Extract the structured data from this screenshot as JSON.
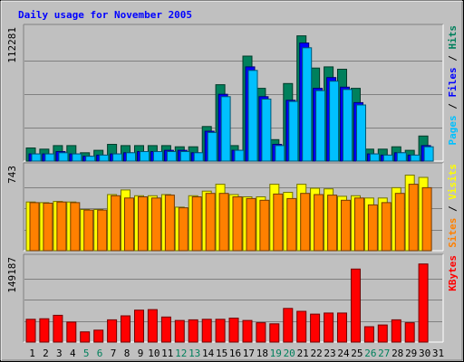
{
  "title": "Daily usage for November 2005",
  "colors": {
    "background": "#C0C0C0",
    "plot": "#C0C0C0",
    "grid": "#808080",
    "title": "#0000FF",
    "hits": "#00805C",
    "files": "#0000FF",
    "pages": "#00C0FF",
    "visits": "#FFFF00",
    "sites": "#FF8000",
    "kbytes": "#FF0000",
    "weekend": "#00805C",
    "weekday": "#000000"
  },
  "chart_data": [
    {
      "type": "bar",
      "name": "traffic",
      "categories": [
        "1",
        "2",
        "3",
        "4",
        "5",
        "6",
        "7",
        "8",
        "9",
        "10",
        "11",
        "12",
        "13",
        "14",
        "15",
        "16",
        "17",
        "18",
        "19",
        "20",
        "21",
        "22",
        "23",
        "24",
        "25",
        "26",
        "27",
        "28",
        "29",
        "30",
        "31"
      ],
      "weekend_days": [
        "5",
        "6",
        "12",
        "13",
        "19",
        "20",
        "26",
        "27"
      ],
      "y_max_label": "112281",
      "ylim": [
        0,
        112281
      ],
      "series": [
        {
          "name": "Hits",
          "values": [
            11000,
            10000,
            13000,
            13000,
            7000,
            9000,
            14000,
            13000,
            13000,
            13000,
            13000,
            12000,
            12000,
            29000,
            64000,
            13000,
            88000,
            61000,
            18000,
            65000,
            105000,
            78000,
            79000,
            77000,
            61000,
            10000,
            10000,
            12000,
            9000,
            21000,
            0
          ]
        },
        {
          "name": "Files",
          "values": [
            6000,
            6000,
            8000,
            6000,
            4000,
            5000,
            6000,
            7000,
            8000,
            8000,
            9000,
            9000,
            7000,
            25000,
            56000,
            9000,
            79000,
            54000,
            14000,
            51000,
            99000,
            61000,
            70000,
            62000,
            49000,
            6000,
            5000,
            7000,
            5000,
            13000,
            0
          ]
        },
        {
          "name": "Pages",
          "values": [
            6000,
            6000,
            7000,
            6000,
            4000,
            5000,
            6000,
            7000,
            8000,
            8000,
            8000,
            8000,
            7000,
            24000,
            54000,
            9000,
            76000,
            52000,
            13000,
            50000,
            95000,
            59000,
            67000,
            60000,
            47000,
            6000,
            5000,
            7000,
            5000,
            12000,
            0
          ]
        }
      ]
    },
    {
      "type": "bar",
      "name": "visitors",
      "categories": [
        "1",
        "2",
        "3",
        "4",
        "5",
        "6",
        "7",
        "8",
        "9",
        "10",
        "11",
        "12",
        "13",
        "14",
        "15",
        "16",
        "17",
        "18",
        "19",
        "20",
        "21",
        "22",
        "23",
        "24",
        "25",
        "26",
        "27",
        "28",
        "29",
        "30",
        "31"
      ],
      "y_max_label": "743",
      "ylim": [
        0,
        743
      ],
      "series": [
        {
          "name": "Visits",
          "values": [
            425,
            420,
            430,
            425,
            360,
            360,
            490,
            530,
            480,
            480,
            490,
            380,
            480,
            520,
            580,
            490,
            470,
            470,
            580,
            510,
            580,
            545,
            540,
            475,
            480,
            460,
            460,
            550,
            660,
            640,
            0
          ]
        },
        {
          "name": "Sites",
          "values": [
            420,
            415,
            425,
            420,
            355,
            355,
            480,
            460,
            470,
            460,
            485,
            375,
            470,
            500,
            500,
            470,
            455,
            440,
            495,
            455,
            500,
            490,
            485,
            440,
            460,
            400,
            420,
            500,
            580,
            550,
            0
          ]
        }
      ]
    },
    {
      "type": "bar",
      "name": "kbytes",
      "categories": [
        "1",
        "2",
        "3",
        "4",
        "5",
        "6",
        "7",
        "8",
        "9",
        "10",
        "11",
        "12",
        "13",
        "14",
        "15",
        "16",
        "17",
        "18",
        "19",
        "20",
        "21",
        "22",
        "23",
        "24",
        "25",
        "26",
        "27",
        "28",
        "29",
        "30",
        "31"
      ],
      "y_max_label": "149187",
      "ylim": [
        0,
        149187
      ],
      "series": [
        {
          "name": "KBytes",
          "values": [
            40000,
            41000,
            47000,
            35000,
            18000,
            21000,
            39000,
            46000,
            56000,
            57000,
            44000,
            38000,
            39000,
            40000,
            40000,
            42000,
            38000,
            34000,
            32000,
            59000,
            54000,
            49000,
            51000,
            51000,
            128000,
            27000,
            30000,
            39000,
            34000,
            137000,
            0
          ]
        }
      ]
    }
  ],
  "right_labels": {
    "top": [
      {
        "text": "Pages",
        "color": "#00C0FF"
      },
      {
        "text": " / ",
        "color": "#000000"
      },
      {
        "text": "Files",
        "color": "#0000FF"
      },
      {
        "text": " / ",
        "color": "#000000"
      },
      {
        "text": "Hits",
        "color": "#00805C"
      }
    ],
    "middle": [
      {
        "text": "Sites",
        "color": "#FF8000"
      },
      {
        "text": " / ",
        "color": "#000000"
      },
      {
        "text": "Visits",
        "color": "#FFFF00"
      }
    ],
    "bottom": [
      {
        "text": "KBytes",
        "color": "#FF0000"
      }
    ]
  }
}
